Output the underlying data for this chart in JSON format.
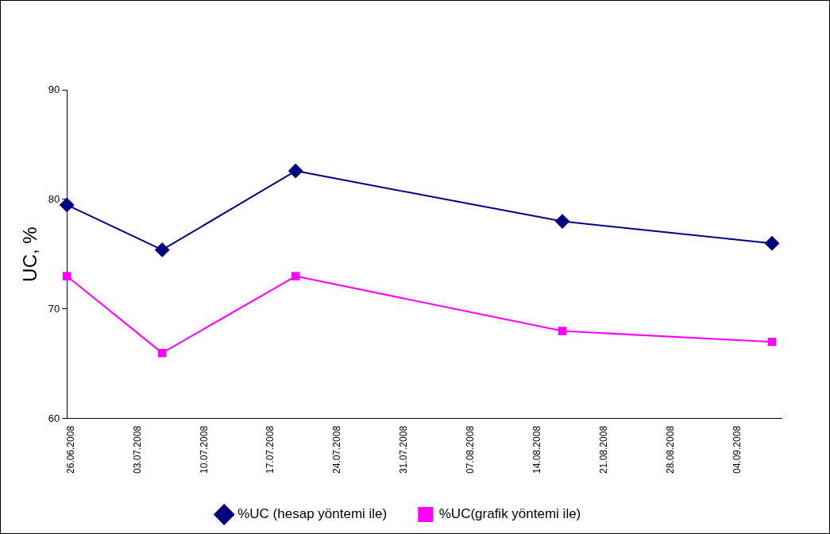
{
  "chart_data": {
    "type": "line",
    "ylabel": "UC, %",
    "x": [
      "2008-06-26",
      "2008-07-06",
      "2008-07-20",
      "2008-08-17",
      "2008-09-08"
    ],
    "series": [
      {
        "name": "%UC (hesap yöntemi ile)",
        "color": "#000080",
        "marker": "diamond",
        "values": [
          79.5,
          75.4,
          82.6,
          78,
          76
        ]
      },
      {
        "name": "%UC(grafik yöntemi ile)",
        "color": "#ff00ff",
        "marker": "square",
        "values": [
          73,
          66,
          73,
          68,
          67
        ]
      }
    ],
    "xlim": [
      "2008-06-26",
      "2008-09-09"
    ],
    "xticks": [
      {
        "value": "2008-06-26",
        "label": "26.06.2008"
      },
      {
        "value": "2008-07-03",
        "label": "03.07.2008"
      },
      {
        "value": "2008-07-10",
        "label": "10.07.2008"
      },
      {
        "value": "2008-07-17",
        "label": "17.07.2008"
      },
      {
        "value": "2008-07-24",
        "label": "24.07.2008"
      },
      {
        "value": "2008-07-31",
        "label": "31.07.2008"
      },
      {
        "value": "2008-08-07",
        "label": "07.08.2008"
      },
      {
        "value": "2008-08-14",
        "label": "14.08.2008"
      },
      {
        "value": "2008-08-21",
        "label": "21.08.2008"
      },
      {
        "value": "2008-08-28",
        "label": "28.08.2008"
      },
      {
        "value": "2008-09-04",
        "label": "04.09.2008"
      }
    ],
    "ylim": [
      60,
      90
    ],
    "yticks": [
      60,
      70,
      80,
      90
    ],
    "grid": false,
    "legend": "bottom",
    "line_style": "solid"
  }
}
